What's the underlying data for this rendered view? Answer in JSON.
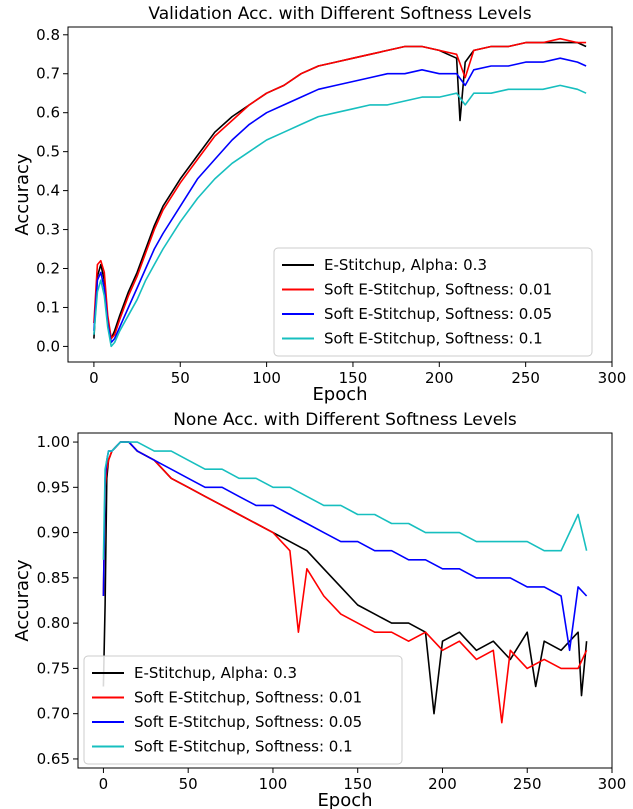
{
  "chart_data": [
    {
      "type": "line",
      "title": "Validation Acc. with Different Softness Levels",
      "xlabel": "Epoch",
      "ylabel": "Accuracy",
      "xlim": [
        -15,
        300
      ],
      "ylim": [
        -0.04,
        0.82
      ],
      "xticks": [
        0,
        50,
        100,
        150,
        200,
        250,
        300
      ],
      "yticks": [
        0.0,
        0.1,
        0.2,
        0.3,
        0.4,
        0.5,
        0.6,
        0.7,
        0.8
      ],
      "xtick_labels": [
        "0",
        "50",
        "100",
        "150",
        "200",
        "250",
        "300"
      ],
      "ytick_labels": [
        "0.0",
        "0.1",
        "0.2",
        "0.3",
        "0.4",
        "0.5",
        "0.6",
        "0.7",
        "0.8"
      ],
      "legend_position": "lower-right",
      "grid": false,
      "series": [
        {
          "name": "E-Stitchup, Alpha: 0.3",
          "color": "#000000",
          "x": [
            0,
            2,
            4,
            6,
            8,
            10,
            12,
            15,
            20,
            25,
            30,
            35,
            40,
            50,
            60,
            70,
            80,
            90,
            100,
            110,
            120,
            130,
            140,
            150,
            160,
            170,
            180,
            190,
            200,
            205,
            210,
            212,
            215,
            220,
            230,
            240,
            250,
            260,
            270,
            280,
            285
          ],
          "y": [
            0.02,
            0.18,
            0.21,
            0.17,
            0.07,
            0.02,
            0.04,
            0.08,
            0.14,
            0.19,
            0.25,
            0.31,
            0.36,
            0.43,
            0.49,
            0.55,
            0.59,
            0.62,
            0.65,
            0.67,
            0.7,
            0.72,
            0.73,
            0.74,
            0.75,
            0.76,
            0.77,
            0.77,
            0.76,
            0.75,
            0.74,
            0.58,
            0.73,
            0.76,
            0.77,
            0.77,
            0.78,
            0.78,
            0.78,
            0.78,
            0.77
          ]
        },
        {
          "name": "Soft E-Stitchup, Softness: 0.01",
          "color": "#ff0000",
          "x": [
            0,
            2,
            4,
            6,
            8,
            10,
            12,
            15,
            20,
            25,
            30,
            35,
            40,
            50,
            60,
            70,
            80,
            90,
            100,
            110,
            120,
            130,
            140,
            150,
            160,
            170,
            180,
            190,
            200,
            210,
            215,
            220,
            230,
            240,
            250,
            260,
            270,
            280,
            285
          ],
          "y": [
            0.06,
            0.21,
            0.22,
            0.19,
            0.08,
            0.02,
            0.03,
            0.07,
            0.13,
            0.18,
            0.24,
            0.3,
            0.35,
            0.42,
            0.48,
            0.54,
            0.58,
            0.62,
            0.65,
            0.67,
            0.7,
            0.72,
            0.73,
            0.74,
            0.75,
            0.76,
            0.77,
            0.77,
            0.76,
            0.75,
            0.69,
            0.76,
            0.77,
            0.77,
            0.78,
            0.78,
            0.79,
            0.78,
            0.78
          ]
        },
        {
          "name": "Soft E-Stitchup, Softness: 0.05",
          "color": "#0000ff",
          "x": [
            0,
            2,
            4,
            6,
            8,
            10,
            12,
            15,
            20,
            25,
            30,
            35,
            40,
            50,
            60,
            70,
            80,
            90,
            100,
            110,
            120,
            130,
            140,
            150,
            160,
            170,
            180,
            190,
            200,
            210,
            215,
            220,
            230,
            240,
            250,
            260,
            270,
            280,
            285
          ],
          "y": [
            0.04,
            0.17,
            0.19,
            0.15,
            0.06,
            0.01,
            0.02,
            0.05,
            0.1,
            0.15,
            0.2,
            0.25,
            0.29,
            0.36,
            0.43,
            0.48,
            0.53,
            0.57,
            0.6,
            0.62,
            0.64,
            0.66,
            0.67,
            0.68,
            0.69,
            0.7,
            0.7,
            0.71,
            0.7,
            0.7,
            0.67,
            0.71,
            0.72,
            0.72,
            0.73,
            0.73,
            0.74,
            0.73,
            0.72
          ]
        },
        {
          "name": "Soft E-Stitchup, Softness: 0.1",
          "color": "#17bfbf",
          "x": [
            0,
            2,
            4,
            6,
            8,
            10,
            12,
            15,
            20,
            25,
            30,
            35,
            40,
            50,
            60,
            70,
            80,
            90,
            100,
            110,
            120,
            130,
            140,
            150,
            160,
            170,
            180,
            190,
            200,
            210,
            215,
            220,
            230,
            240,
            250,
            260,
            270,
            280,
            285
          ],
          "y": [
            0.03,
            0.14,
            0.17,
            0.13,
            0.05,
            0.0,
            0.01,
            0.04,
            0.08,
            0.12,
            0.17,
            0.21,
            0.25,
            0.32,
            0.38,
            0.43,
            0.47,
            0.5,
            0.53,
            0.55,
            0.57,
            0.59,
            0.6,
            0.61,
            0.62,
            0.62,
            0.63,
            0.64,
            0.64,
            0.65,
            0.62,
            0.65,
            0.65,
            0.66,
            0.66,
            0.66,
            0.67,
            0.66,
            0.65
          ]
        }
      ]
    },
    {
      "type": "line",
      "title": "None Acc. with Different Softness Levels",
      "xlabel": "Epoch",
      "ylabel": "Accuracy",
      "xlim": [
        -15,
        300
      ],
      "ylim": [
        0.64,
        1.01
      ],
      "xticks": [
        0,
        50,
        100,
        150,
        200,
        250,
        300
      ],
      "yticks": [
        0.65,
        0.7,
        0.75,
        0.8,
        0.85,
        0.9,
        0.95,
        1.0
      ],
      "xtick_labels": [
        "0",
        "50",
        "100",
        "150",
        "200",
        "250",
        "300"
      ],
      "ytick_labels": [
        "0.65",
        "0.70",
        "0.75",
        "0.80",
        "0.85",
        "0.90",
        "0.95",
        "1.00"
      ],
      "legend_position": "lower-left",
      "grid": false,
      "series": [
        {
          "name": "E-Stitchup, Alpha: 0.3",
          "color": "#000000",
          "x": [
            0,
            1,
            2,
            3,
            5,
            10,
            15,
            20,
            30,
            40,
            50,
            60,
            70,
            80,
            90,
            100,
            110,
            120,
            130,
            140,
            150,
            160,
            170,
            180,
            190,
            195,
            200,
            210,
            220,
            230,
            240,
            250,
            255,
            260,
            270,
            280,
            282,
            285
          ],
          "y": [
            0.73,
            0.82,
            0.96,
            0.98,
            0.99,
            1.0,
            1.0,
            0.99,
            0.98,
            0.96,
            0.95,
            0.94,
            0.93,
            0.92,
            0.91,
            0.9,
            0.89,
            0.88,
            0.86,
            0.84,
            0.82,
            0.81,
            0.8,
            0.8,
            0.79,
            0.7,
            0.78,
            0.79,
            0.77,
            0.78,
            0.76,
            0.79,
            0.73,
            0.78,
            0.77,
            0.79,
            0.72,
            0.78
          ]
        },
        {
          "name": "Soft E-Stitchup, Softness: 0.01",
          "color": "#ff0000",
          "x": [
            0,
            1,
            2,
            3,
            5,
            10,
            15,
            20,
            30,
            40,
            50,
            60,
            70,
            80,
            90,
            100,
            110,
            115,
            120,
            130,
            140,
            150,
            160,
            170,
            180,
            190,
            200,
            210,
            220,
            230,
            235,
            240,
            250,
            260,
            270,
            280,
            285
          ],
          "y": [
            0.83,
            0.95,
            0.97,
            0.98,
            0.99,
            1.0,
            1.0,
            0.99,
            0.98,
            0.96,
            0.95,
            0.94,
            0.93,
            0.92,
            0.91,
            0.9,
            0.88,
            0.79,
            0.86,
            0.83,
            0.81,
            0.8,
            0.79,
            0.79,
            0.78,
            0.79,
            0.77,
            0.78,
            0.76,
            0.77,
            0.69,
            0.77,
            0.75,
            0.76,
            0.75,
            0.75,
            0.77
          ]
        },
        {
          "name": "Soft E-Stitchup, Softness: 0.05",
          "color": "#0000ff",
          "x": [
            0,
            1,
            2,
            3,
            5,
            10,
            15,
            20,
            30,
            40,
            50,
            60,
            70,
            80,
            90,
            100,
            110,
            120,
            130,
            140,
            150,
            160,
            170,
            180,
            190,
            200,
            210,
            220,
            230,
            240,
            250,
            260,
            270,
            275,
            280,
            285
          ],
          "y": [
            0.83,
            0.96,
            0.98,
            0.99,
            0.99,
            1.0,
            1.0,
            0.99,
            0.98,
            0.97,
            0.96,
            0.95,
            0.95,
            0.94,
            0.93,
            0.93,
            0.92,
            0.91,
            0.9,
            0.89,
            0.89,
            0.88,
            0.88,
            0.87,
            0.87,
            0.86,
            0.86,
            0.85,
            0.85,
            0.85,
            0.84,
            0.84,
            0.83,
            0.77,
            0.84,
            0.83
          ]
        },
        {
          "name": "Soft E-Stitchup, Softness: 0.1",
          "color": "#17bfbf",
          "x": [
            0,
            1,
            2,
            3,
            5,
            10,
            15,
            20,
            30,
            40,
            50,
            60,
            70,
            80,
            90,
            100,
            110,
            120,
            130,
            140,
            150,
            160,
            170,
            180,
            190,
            200,
            210,
            220,
            230,
            240,
            250,
            260,
            270,
            280,
            285
          ],
          "y": [
            0.87,
            0.97,
            0.98,
            0.99,
            0.99,
            1.0,
            1.0,
            1.0,
            0.99,
            0.99,
            0.98,
            0.97,
            0.97,
            0.96,
            0.96,
            0.95,
            0.95,
            0.94,
            0.93,
            0.93,
            0.92,
            0.92,
            0.91,
            0.91,
            0.9,
            0.9,
            0.9,
            0.89,
            0.89,
            0.89,
            0.89,
            0.88,
            0.88,
            0.92,
            0.88
          ]
        }
      ]
    }
  ]
}
